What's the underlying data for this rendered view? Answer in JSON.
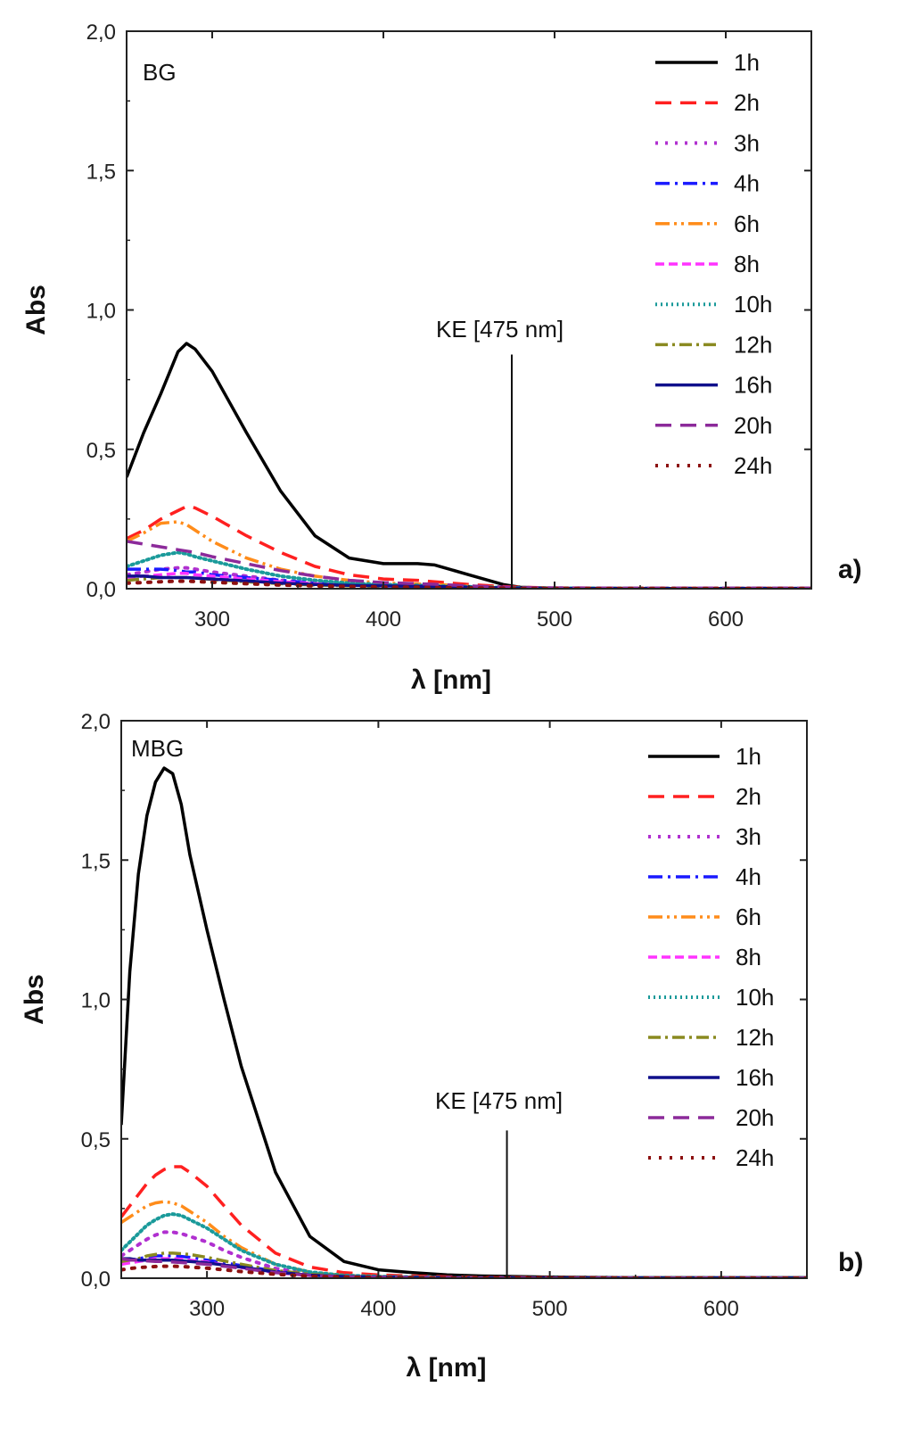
{
  "chart_data": [
    {
      "type": "line",
      "panel_label": "a)",
      "sample_label": "BG",
      "xlabel": "λ [nm]",
      "ylabel": "Abs",
      "xlim": [
        250,
        650
      ],
      "ylim": [
        0,
        2
      ],
      "xticks": [
        300,
        400,
        500,
        600
      ],
      "xtick_labels": [
        "300",
        "400",
        "500",
        "600"
      ],
      "yticks": [
        0,
        0.5,
        1,
        1.5,
        2
      ],
      "ytick_labels": [
        "0,0",
        "0,5",
        "1,0",
        "1,5",
        "2,0"
      ],
      "legend_position": "top-right",
      "annotation": {
        "text": "KE [475 nm]",
        "x": 475,
        "y_top": 0.84
      },
      "x": [
        250,
        260,
        270,
        280,
        285,
        290,
        300,
        320,
        340,
        360,
        380,
        400,
        420,
        430,
        450,
        470,
        480,
        500,
        550,
        600,
        650
      ],
      "series": [
        {
          "name": "1h",
          "color": "#000000",
          "dash": "",
          "width": 3.5,
          "values": [
            0.4,
            0.56,
            0.7,
            0.85,
            0.88,
            0.86,
            0.78,
            0.56,
            0.35,
            0.19,
            0.11,
            0.09,
            0.09,
            0.085,
            0.05,
            0.015,
            0.005,
            0.002,
            0.001,
            0.001,
            0.001
          ]
        },
        {
          "name": "2h",
          "color": "#ff2020",
          "dash": "18,10",
          "width": 3.5,
          "values": [
            0.18,
            0.21,
            0.25,
            0.28,
            0.295,
            0.29,
            0.26,
            0.19,
            0.13,
            0.08,
            0.05,
            0.035,
            0.03,
            0.025,
            0.015,
            0.008,
            0.005,
            0.003,
            0.002,
            0.002,
            0.002
          ]
        },
        {
          "name": "3h",
          "color": "#b030d0",
          "dash": "3,8",
          "width": 4,
          "values": [
            0.05,
            0.06,
            0.07,
            0.075,
            0.075,
            0.07,
            0.06,
            0.045,
            0.03,
            0.02,
            0.015,
            0.012,
            0.01,
            0.008,
            0.005,
            0.003,
            0.002,
            0.001,
            0.001,
            0.001,
            0.001
          ]
        },
        {
          "name": "4h",
          "color": "#1a1aff",
          "dash": "16,6,3,6",
          "width": 3.5,
          "values": [
            0.07,
            0.07,
            0.07,
            0.065,
            0.06,
            0.06,
            0.05,
            0.04,
            0.03,
            0.02,
            0.015,
            0.012,
            0.01,
            0.008,
            0.005,
            0.003,
            0.002,
            0.001,
            0.001,
            0.001,
            0.001
          ]
        },
        {
          "name": "6h",
          "color": "#ff8c1a",
          "dash": "16,5,3,5,3,5",
          "width": 3.5,
          "values": [
            0.17,
            0.2,
            0.235,
            0.24,
            0.23,
            0.21,
            0.17,
            0.11,
            0.07,
            0.045,
            0.03,
            0.02,
            0.017,
            0.015,
            0.01,
            0.005,
            0.003,
            0.002,
            0.001,
            0.001,
            0.001
          ]
        },
        {
          "name": "8h",
          "color": "#ff33ff",
          "dash": "10,5",
          "width": 3.5,
          "values": [
            0.04,
            0.045,
            0.05,
            0.055,
            0.055,
            0.05,
            0.045,
            0.035,
            0.025,
            0.018,
            0.013,
            0.01,
            0.008,
            0.007,
            0.005,
            0.003,
            0.002,
            0.001,
            0.001,
            0.001,
            0.001
          ]
        },
        {
          "name": "10h",
          "color": "#1a9a9a",
          "dash": "2,4",
          "width": 4,
          "values": [
            0.08,
            0.1,
            0.12,
            0.13,
            0.125,
            0.115,
            0.1,
            0.07,
            0.045,
            0.03,
            0.02,
            0.015,
            0.012,
            0.01,
            0.007,
            0.004,
            0.003,
            0.002,
            0.001,
            0.001,
            0.001
          ]
        },
        {
          "name": "12h",
          "color": "#8a8a20",
          "dash": "14,5,3,5",
          "width": 3.5,
          "values": [
            0.03,
            0.035,
            0.04,
            0.04,
            0.04,
            0.038,
            0.033,
            0.025,
            0.018,
            0.013,
            0.01,
            0.008,
            0.007,
            0.006,
            0.004,
            0.002,
            0.002,
            0.001,
            0.001,
            0.001,
            0.001
          ]
        },
        {
          "name": "16h",
          "color": "#10108c",
          "dash": "",
          "width": 3.5,
          "values": [
            0.045,
            0.045,
            0.04,
            0.04,
            0.04,
            0.038,
            0.035,
            0.028,
            0.02,
            0.015,
            0.012,
            0.01,
            0.009,
            0.008,
            0.005,
            0.003,
            0.002,
            0.001,
            0.001,
            0.001,
            0.001
          ]
        },
        {
          "name": "20h",
          "color": "#8c2a9a",
          "dash": "18,10",
          "width": 3.5,
          "values": [
            0.17,
            0.16,
            0.15,
            0.14,
            0.135,
            0.13,
            0.115,
            0.09,
            0.065,
            0.045,
            0.03,
            0.022,
            0.018,
            0.016,
            0.01,
            0.006,
            0.004,
            0.003,
            0.002,
            0.002,
            0.002
          ]
        },
        {
          "name": "24h",
          "color": "#8c1010",
          "dash": "3,9",
          "width": 4,
          "values": [
            0.02,
            0.022,
            0.025,
            0.027,
            0.027,
            0.026,
            0.023,
            0.018,
            0.013,
            0.01,
            0.008,
            0.006,
            0.005,
            0.004,
            0.003,
            0.002,
            0.001,
            0.001,
            0.001,
            0.001,
            0.001
          ]
        }
      ]
    },
    {
      "type": "line",
      "panel_label": "b)",
      "sample_label": "MBG",
      "xlabel": "λ [nm]",
      "ylabel": "Abs",
      "xlim": [
        250,
        650
      ],
      "ylim": [
        0,
        2
      ],
      "xticks": [
        300,
        400,
        500,
        600
      ],
      "xtick_labels": [
        "300",
        "400",
        "500",
        "600"
      ],
      "yticks": [
        0,
        0.5,
        1,
        1.5,
        2
      ],
      "ytick_labels": [
        "0,0",
        "0,5",
        "1,0",
        "1,5",
        "2,0"
      ],
      "legend_position": "top-right",
      "annotation": {
        "text": "KE [475 nm]",
        "x": 475,
        "y_top": 0.53
      },
      "x": [
        250,
        255,
        260,
        265,
        270,
        275,
        280,
        285,
        290,
        300,
        310,
        320,
        340,
        360,
        380,
        400,
        420,
        440,
        460,
        500,
        550,
        600,
        650
      ],
      "series": [
        {
          "name": "1h",
          "color": "#000000",
          "dash": "",
          "width": 3.5,
          "values": [
            0.55,
            1.1,
            1.45,
            1.66,
            1.78,
            1.83,
            1.81,
            1.7,
            1.52,
            1.25,
            1.0,
            0.76,
            0.38,
            0.15,
            0.06,
            0.03,
            0.02,
            0.012,
            0.008,
            0.004,
            0.002,
            0.002,
            0.002
          ]
        },
        {
          "name": "2h",
          "color": "#ff2020",
          "dash": "18,10",
          "width": 3.5,
          "values": [
            0.22,
            0.26,
            0.3,
            0.34,
            0.37,
            0.39,
            0.4,
            0.4,
            0.38,
            0.33,
            0.26,
            0.19,
            0.09,
            0.04,
            0.02,
            0.012,
            0.008,
            0.005,
            0.003,
            0.002,
            0.001,
            0.001,
            0.001
          ]
        },
        {
          "name": "3h",
          "color": "#b030d0",
          "dash": "3,8",
          "width": 4,
          "values": [
            0.08,
            0.1,
            0.12,
            0.14,
            0.155,
            0.165,
            0.165,
            0.16,
            0.15,
            0.13,
            0.1,
            0.075,
            0.035,
            0.015,
            0.008,
            0.005,
            0.003,
            0.002,
            0.001,
            0.001,
            0.001,
            0.001,
            0.001
          ]
        },
        {
          "name": "4h",
          "color": "#1a1aff",
          "dash": "16,6,3,6",
          "width": 3.5,
          "values": [
            0.06,
            0.065,
            0.07,
            0.075,
            0.08,
            0.08,
            0.08,
            0.078,
            0.075,
            0.065,
            0.055,
            0.045,
            0.025,
            0.012,
            0.006,
            0.004,
            0.003,
            0.002,
            0.001,
            0.001,
            0.001,
            0.001,
            0.001
          ]
        },
        {
          "name": "6h",
          "color": "#ff8c1a",
          "dash": "16,5,3,5,3,5",
          "width": 3.5,
          "values": [
            0.2,
            0.22,
            0.24,
            0.26,
            0.27,
            0.275,
            0.27,
            0.26,
            0.24,
            0.2,
            0.15,
            0.11,
            0.05,
            0.022,
            0.01,
            0.006,
            0.004,
            0.002,
            0.001,
            0.001,
            0.001,
            0.001,
            0.001
          ]
        },
        {
          "name": "8h",
          "color": "#ff33ff",
          "dash": "10,5",
          "width": 3.5,
          "values": [
            0.05,
            0.055,
            0.06,
            0.065,
            0.07,
            0.07,
            0.07,
            0.068,
            0.065,
            0.058,
            0.048,
            0.038,
            0.02,
            0.01,
            0.005,
            0.003,
            0.002,
            0.001,
            0.001,
            0.001,
            0.001,
            0.001,
            0.001
          ]
        },
        {
          "name": "10h",
          "color": "#1a9a9a",
          "dash": "2,4",
          "width": 4,
          "values": [
            0.1,
            0.13,
            0.16,
            0.19,
            0.21,
            0.225,
            0.23,
            0.225,
            0.21,
            0.18,
            0.14,
            0.1,
            0.05,
            0.022,
            0.01,
            0.006,
            0.004,
            0.002,
            0.001,
            0.001,
            0.001,
            0.001,
            0.001
          ]
        },
        {
          "name": "12h",
          "color": "#8a8a20",
          "dash": "14,5,3,5",
          "width": 3.5,
          "values": [
            0.06,
            0.065,
            0.07,
            0.08,
            0.085,
            0.09,
            0.09,
            0.088,
            0.085,
            0.075,
            0.062,
            0.05,
            0.028,
            0.014,
            0.007,
            0.004,
            0.003,
            0.002,
            0.001,
            0.001,
            0.001,
            0.001,
            0.001
          ]
        },
        {
          "name": "16h",
          "color": "#10108c",
          "dash": "",
          "width": 3.5,
          "values": [
            0.07,
            0.07,
            0.065,
            0.065,
            0.065,
            0.065,
            0.065,
            0.062,
            0.06,
            0.055,
            0.047,
            0.04,
            0.022,
            0.011,
            0.006,
            0.004,
            0.003,
            0.002,
            0.001,
            0.001,
            0.001,
            0.001,
            0.001
          ]
        },
        {
          "name": "20h",
          "color": "#8c2a9a",
          "dash": "18,10",
          "width": 3.5,
          "values": [
            0.07,
            0.065,
            0.065,
            0.062,
            0.06,
            0.06,
            0.058,
            0.056,
            0.054,
            0.05,
            0.043,
            0.036,
            0.02,
            0.01,
            0.005,
            0.003,
            0.002,
            0.001,
            0.001,
            0.001,
            0.001,
            0.001,
            0.001
          ]
        },
        {
          "name": "24h",
          "color": "#8c1010",
          "dash": "3,9",
          "width": 4,
          "values": [
            0.03,
            0.035,
            0.038,
            0.04,
            0.042,
            0.043,
            0.043,
            0.042,
            0.04,
            0.036,
            0.03,
            0.024,
            0.014,
            0.007,
            0.004,
            0.002,
            0.002,
            0.001,
            0.001,
            0.001,
            0.001,
            0.001,
            0.001
          ]
        }
      ]
    }
  ]
}
